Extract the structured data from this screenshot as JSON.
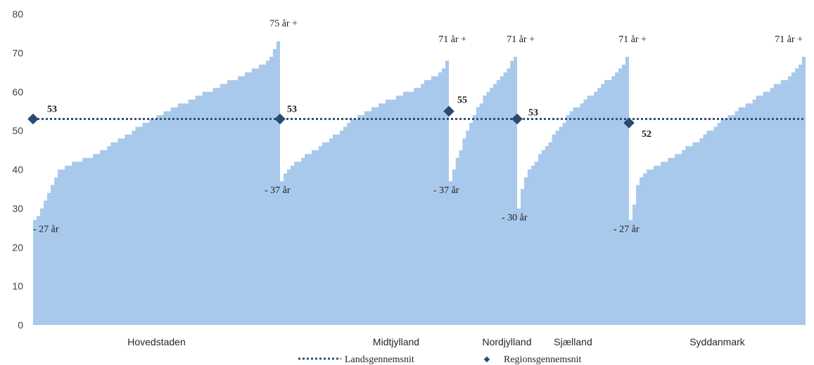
{
  "chart_data": {
    "type": "area",
    "ylim": [
      0,
      80
    ],
    "yticks": [
      0,
      10,
      20,
      30,
      40,
      50,
      60,
      70,
      80
    ],
    "national_average": 53,
    "regions": [
      {
        "name": "Hovedstaden",
        "regional_average": 53,
        "min_label": "- 27 år",
        "max_label": "75 år +",
        "profile": [
          [
            0,
            27
          ],
          [
            0.03,
            30
          ],
          [
            0.09,
            39
          ],
          [
            0.13,
            41
          ],
          [
            0.22,
            43
          ],
          [
            0.3,
            46
          ],
          [
            0.4,
            50
          ],
          [
            0.5,
            54
          ],
          [
            0.6,
            57
          ],
          [
            0.7,
            60
          ],
          [
            0.8,
            63
          ],
          [
            0.9,
            66
          ],
          [
            0.96,
            69
          ],
          [
            1,
            75
          ]
        ]
      },
      {
        "name": "Midtjylland",
        "regional_average": 53,
        "min_label": "- 37 år",
        "max_label": "71 år +",
        "profile": [
          [
            0,
            37
          ],
          [
            0.04,
            40
          ],
          [
            0.12,
            43
          ],
          [
            0.2,
            45
          ],
          [
            0.3,
            48
          ],
          [
            0.4,
            52
          ],
          [
            0.5,
            55
          ],
          [
            0.6,
            57
          ],
          [
            0.7,
            59
          ],
          [
            0.8,
            61
          ],
          [
            0.9,
            64
          ],
          [
            0.97,
            66
          ],
          [
            1,
            71
          ]
        ]
      },
      {
        "name": "Nordjylland",
        "regional_average": 55,
        "min_label": "- 37 år",
        "max_label": "71 år +",
        "profile": [
          [
            0,
            37
          ],
          [
            0.05,
            40
          ],
          [
            0.15,
            45
          ],
          [
            0.25,
            50
          ],
          [
            0.35,
            54
          ],
          [
            0.45,
            57
          ],
          [
            0.55,
            60
          ],
          [
            0.65,
            62
          ],
          [
            0.75,
            64
          ],
          [
            0.85,
            66
          ],
          [
            0.95,
            69
          ],
          [
            1,
            71
          ]
        ]
      },
      {
        "name": "Sjælland",
        "regional_average": 53,
        "min_label": "- 30 år",
        "max_label": "71 år +",
        "profile": [
          [
            0,
            30
          ],
          [
            0.03,
            35
          ],
          [
            0.08,
            40
          ],
          [
            0.15,
            42
          ],
          [
            0.25,
            46
          ],
          [
            0.35,
            50
          ],
          [
            0.45,
            54
          ],
          [
            0.55,
            57
          ],
          [
            0.65,
            59
          ],
          [
            0.75,
            62
          ],
          [
            0.85,
            64
          ],
          [
            0.95,
            67
          ],
          [
            1,
            71
          ]
        ]
      },
      {
        "name": "Syddanmark",
        "regional_average": 52,
        "min_label": "- 27 år",
        "max_label": "71 år +",
        "profile": [
          [
            0,
            27
          ],
          [
            0.02,
            31
          ],
          [
            0.05,
            38
          ],
          [
            0.1,
            40
          ],
          [
            0.2,
            42
          ],
          [
            0.3,
            45
          ],
          [
            0.4,
            48
          ],
          [
            0.5,
            52
          ],
          [
            0.6,
            55
          ],
          [
            0.7,
            58
          ],
          [
            0.8,
            61
          ],
          [
            0.9,
            64
          ],
          [
            0.97,
            68
          ],
          [
            1,
            71
          ]
        ]
      }
    ],
    "legend": {
      "national_label": "Landsgennemsnit",
      "regional_label": "Regionsgennemsnit",
      "placement": "bottom"
    },
    "colors": {
      "area": "#a9c9ec",
      "national_line": "#2f5079",
      "regional_marker": "#2b4a6f"
    }
  }
}
